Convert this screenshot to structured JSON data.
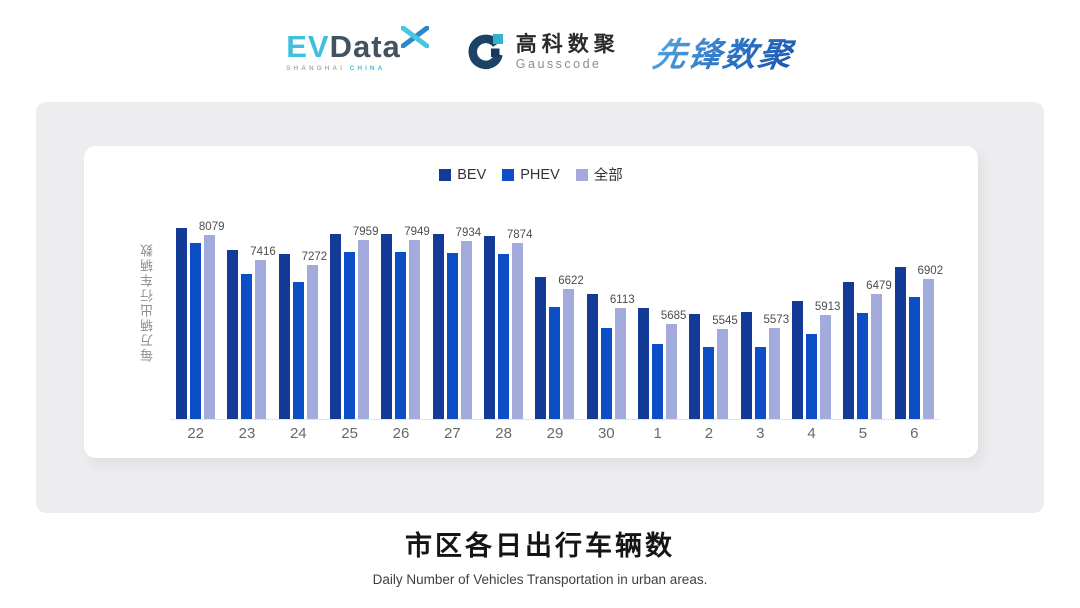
{
  "header": {
    "evdata": {
      "ev": "EV",
      "data_word": "Data",
      "sub_left": "SHANGHAI",
      "sub_right": "CHINA"
    },
    "gausscode": {
      "cn": "高科数聚",
      "en": "Gausscode"
    },
    "pioneer": {
      "text": "先锋数聚"
    }
  },
  "chart_data": {
    "type": "bar",
    "title": "",
    "ylabel": "每万辆出行车辆数",
    "xlabel": "",
    "legend_position": "top",
    "grid": false,
    "y_axis_ticks_visible": false,
    "ylim": [
      3100,
      9200
    ],
    "categories": [
      "22",
      "23",
      "24",
      "25",
      "26",
      "27",
      "28",
      "29",
      "30",
      "1",
      "2",
      "3",
      "4",
      "5",
      "6"
    ],
    "series": [
      {
        "key": "bev",
        "name": "BEV",
        "color": "#123a96",
        "show_labels": false,
        "values": [
          8290,
          7680,
          7560,
          8120,
          8120,
          8120,
          8050,
          6950,
          6480,
          6110,
          5960,
          6000,
          6310,
          6820,
          7210
        ]
      },
      {
        "key": "phev",
        "name": "PHEV",
        "color": "#0c4ec6",
        "show_labels": false,
        "values": [
          7860,
          7030,
          6810,
          7620,
          7620,
          7600,
          7580,
          6130,
          5580,
          5130,
          5040,
          5040,
          5400,
          5980,
          6400
        ]
      },
      {
        "key": "all",
        "name": "全部",
        "color": "#a2abdb",
        "show_labels": true,
        "values": [
          8079,
          7416,
          7272,
          7959,
          7949,
          7934,
          7874,
          6622,
          6113,
          5685,
          5545,
          5573,
          5913,
          6479,
          6902
        ]
      }
    ],
    "note": "BEV and PHEV values estimated from bar heights; 全部 values are the printed data labels"
  },
  "footer": {
    "title": "市区各日出行车辆数",
    "subtitle": "Daily Number of Vehicles Transportation in urban areas."
  }
}
